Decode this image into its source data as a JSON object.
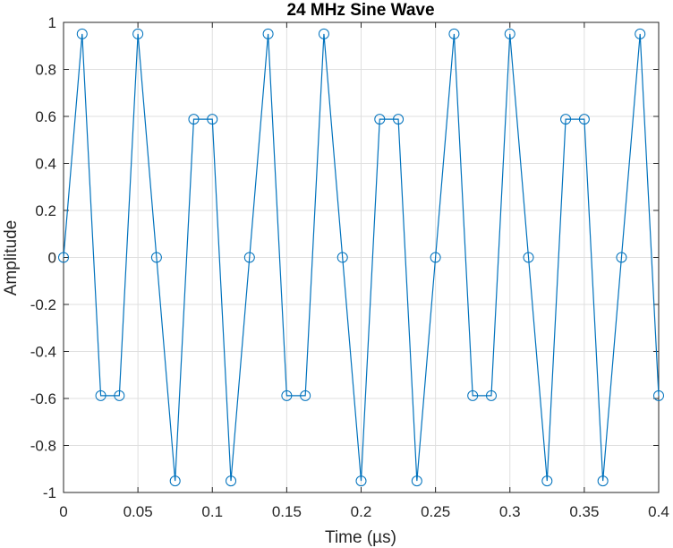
{
  "chart_data": {
    "type": "line",
    "title": "24 MHz Sine Wave",
    "xlabel": "Time (µs)",
    "ylabel": "Amplitude",
    "xlim": [
      0,
      0.4
    ],
    "ylim": [
      -1,
      1
    ],
    "x_ticks": [
      "0",
      "0.05",
      "0.1",
      "0.15",
      "0.2",
      "0.25",
      "0.3",
      "0.35",
      "0.4"
    ],
    "y_ticks": [
      "1",
      "0.8",
      "0.6",
      "0.4",
      "0.2",
      "0",
      "-0.2",
      "-0.4",
      "-0.6",
      "-0.8",
      "-1"
    ],
    "grid": true,
    "line_color": "#0072BD",
    "marker": "circle",
    "series": [
      {
        "x": [
          0,
          0.0125,
          0.025,
          0.0375,
          0.05,
          0.0625,
          0.075,
          0.0875,
          0.1,
          0.1125,
          0.125,
          0.1375,
          0.15,
          0.1625,
          0.175,
          0.1875,
          0.2,
          0.2125,
          0.225,
          0.2375,
          0.25,
          0.2625,
          0.275,
          0.2875,
          0.3,
          0.3125,
          0.325,
          0.3375,
          0.35,
          0.3625,
          0.375,
          0.3875,
          0.4
        ],
        "values": [
          0,
          0.951,
          -0.588,
          -0.588,
          0.951,
          0,
          -0.951,
          0.588,
          0.588,
          -0.951,
          0,
          0.951,
          -0.588,
          -0.588,
          0.951,
          0,
          -0.951,
          0.588,
          0.588,
          -0.951,
          0,
          0.951,
          -0.588,
          -0.588,
          0.951,
          0,
          -0.951,
          0.588,
          0.588,
          -0.951,
          0,
          0.951,
          -0.588
        ]
      }
    ]
  }
}
